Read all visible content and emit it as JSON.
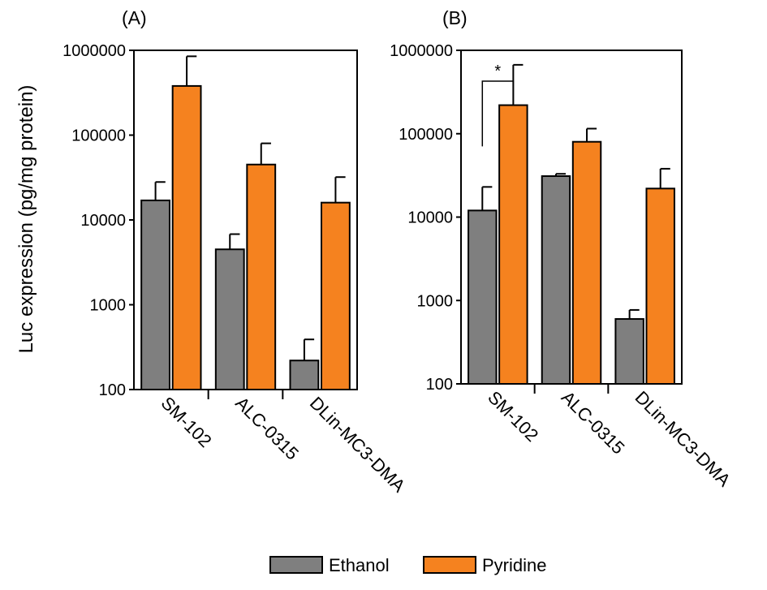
{
  "shared": {
    "ylabel": "Luc expression (pg/mg protein)",
    "categories": [
      "SM-102",
      "ALC-0315",
      "DLin-MC3-DMA"
    ],
    "legend": [
      {
        "name": "Ethanol",
        "color": "#7f7f7f"
      },
      {
        "name": "Pyridine",
        "color": "#f5821f"
      }
    ],
    "legend_placement": "bottom-center"
  },
  "chart_data": [
    {
      "type": "bar",
      "panel_label": "(A)",
      "scale": "log",
      "ylim": [
        100,
        1000000
      ],
      "yticks": [
        "100",
        "1000",
        "10000",
        "100000",
        "1000000"
      ],
      "grid": false,
      "categories": [
        "SM-102",
        "ALC-0315",
        "DLin-MC3-DMA"
      ],
      "series": [
        {
          "name": "Ethanol",
          "values": [
            17000,
            4500,
            220
          ],
          "errors_upper": [
            28000,
            6800,
            390
          ]
        },
        {
          "name": "Pyridine",
          "values": [
            380000,
            45000,
            16000
          ],
          "errors_upper": [
            850000,
            80000,
            32000
          ]
        }
      ],
      "annotations": []
    },
    {
      "type": "bar",
      "panel_label": "(B)",
      "scale": "log",
      "ylim": [
        100,
        1000000
      ],
      "yticks": [
        "100",
        "1000",
        "10000",
        "100000",
        "1000000"
      ],
      "grid": false,
      "categories": [
        "SM-102",
        "ALC-0315",
        "DLin-MC3-DMA"
      ],
      "series": [
        {
          "name": "Ethanol",
          "values": [
            12000,
            31000,
            600
          ],
          "errors_upper": [
            23000,
            33000,
            770
          ]
        },
        {
          "name": "Pyridine",
          "values": [
            220000,
            80000,
            22000
          ],
          "errors_upper": [
            670000,
            115000,
            38000
          ]
        }
      ],
      "annotations": [
        {
          "text": "*",
          "between": "SM-102 Ethanol vs Pyridine"
        }
      ]
    }
  ]
}
